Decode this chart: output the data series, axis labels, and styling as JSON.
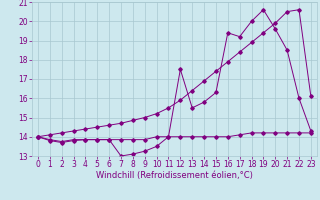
{
  "xlabel": "Windchill (Refroidissement éolien,°C)",
  "xlim": [
    -0.5,
    23.5
  ],
  "ylim": [
    13,
    21
  ],
  "yticks": [
    13,
    14,
    15,
    16,
    17,
    18,
    19,
    20,
    21
  ],
  "xticks": [
    0,
    1,
    2,
    3,
    4,
    5,
    6,
    7,
    8,
    9,
    10,
    11,
    12,
    13,
    14,
    15,
    16,
    17,
    18,
    19,
    20,
    21,
    22,
    23
  ],
  "bg_color": "#cde8ee",
  "line_color": "#800080",
  "grid_color": "#a8c8d0",
  "series1_x": [
    0,
    1,
    2,
    3,
    4,
    5,
    6,
    7,
    8,
    9,
    10,
    11,
    12,
    13,
    14,
    15,
    16,
    17,
    18,
    19,
    20,
    21,
    22,
    23
  ],
  "series1_y": [
    14.0,
    13.8,
    13.7,
    13.8,
    13.85,
    13.85,
    13.85,
    13.0,
    13.1,
    13.25,
    13.5,
    14.0,
    17.5,
    15.5,
    15.8,
    16.3,
    19.4,
    19.2,
    20.0,
    20.6,
    19.6,
    18.5,
    16.0,
    14.3
  ],
  "series2_x": [
    0,
    1,
    2,
    3,
    4,
    5,
    6,
    7,
    8,
    9,
    10,
    11,
    12,
    13,
    14,
    15,
    16,
    17,
    18,
    19,
    20,
    21,
    22,
    23
  ],
  "series2_y": [
    14.0,
    13.85,
    13.75,
    13.85,
    13.85,
    13.85,
    13.85,
    13.85,
    13.85,
    13.85,
    14.0,
    14.0,
    14.0,
    14.0,
    14.0,
    14.0,
    14.0,
    14.1,
    14.2,
    14.2,
    14.2,
    14.2,
    14.2,
    14.2
  ],
  "series3_x": [
    0,
    1,
    2,
    3,
    4,
    5,
    6,
    7,
    8,
    9,
    10,
    11,
    12,
    13,
    14,
    15,
    16,
    17,
    18,
    19,
    20,
    21,
    22,
    23
  ],
  "series3_y": [
    14.0,
    14.1,
    14.2,
    14.3,
    14.4,
    14.5,
    14.6,
    14.7,
    14.85,
    15.0,
    15.2,
    15.5,
    15.9,
    16.4,
    16.9,
    17.4,
    17.9,
    18.4,
    18.9,
    19.4,
    19.9,
    20.5,
    20.6,
    16.1
  ],
  "font_color": "#800080",
  "font_size_axis": 6.0,
  "font_size_tick": 5.5
}
